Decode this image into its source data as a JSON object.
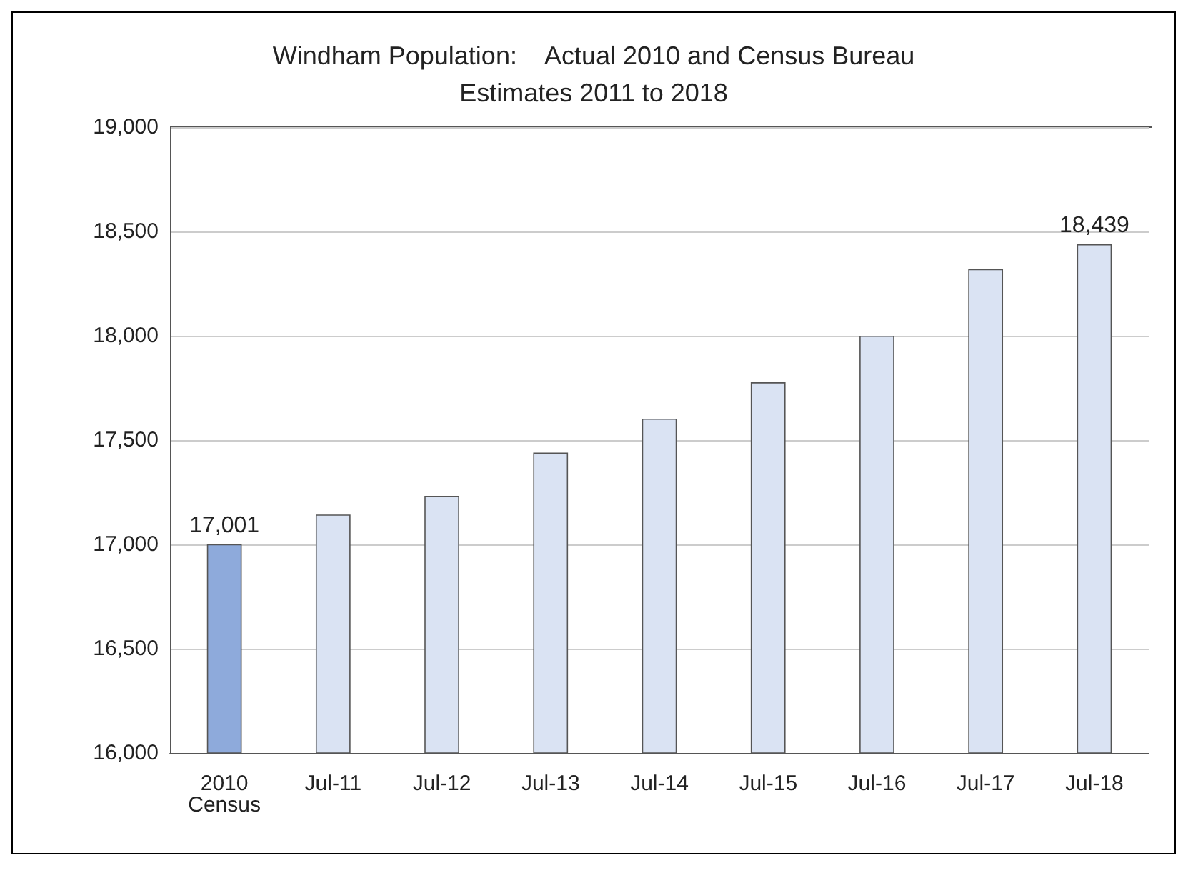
{
  "chart_data": {
    "type": "bar",
    "title": "Windham Population:    Actual 2010 and Census Bureau\nEstimates 2011 to 2018",
    "categories": [
      "2010\nCensus",
      "Jul-11",
      "Jul-12",
      "Jul-13",
      "Jul-14",
      "Jul-15",
      "Jul-16",
      "Jul-17",
      "Jul-18"
    ],
    "values": [
      17001,
      17143,
      17233,
      17440,
      17603,
      17777,
      18000,
      18320,
      18439
    ],
    "colors": [
      "#8eaadb",
      "#dae3f3",
      "#dae3f3",
      "#dae3f3",
      "#dae3f3",
      "#dae3f3",
      "#dae3f3",
      "#dae3f3",
      "#dae3f3"
    ],
    "value_labels": [
      "17,001",
      null,
      null,
      null,
      null,
      null,
      null,
      null,
      "18,439"
    ],
    "ylim": [
      16000,
      19000
    ],
    "yticks": [
      {
        "value": 16000,
        "label": "16,000"
      },
      {
        "value": 16500,
        "label": "16,500"
      },
      {
        "value": 17000,
        "label": "17,000"
      },
      {
        "value": 17500,
        "label": "17,500"
      },
      {
        "value": 18000,
        "label": "18,000"
      },
      {
        "value": 18500,
        "label": "18,500"
      },
      {
        "value": 19000,
        "label": "19,000"
      }
    ],
    "grid": "y"
  }
}
